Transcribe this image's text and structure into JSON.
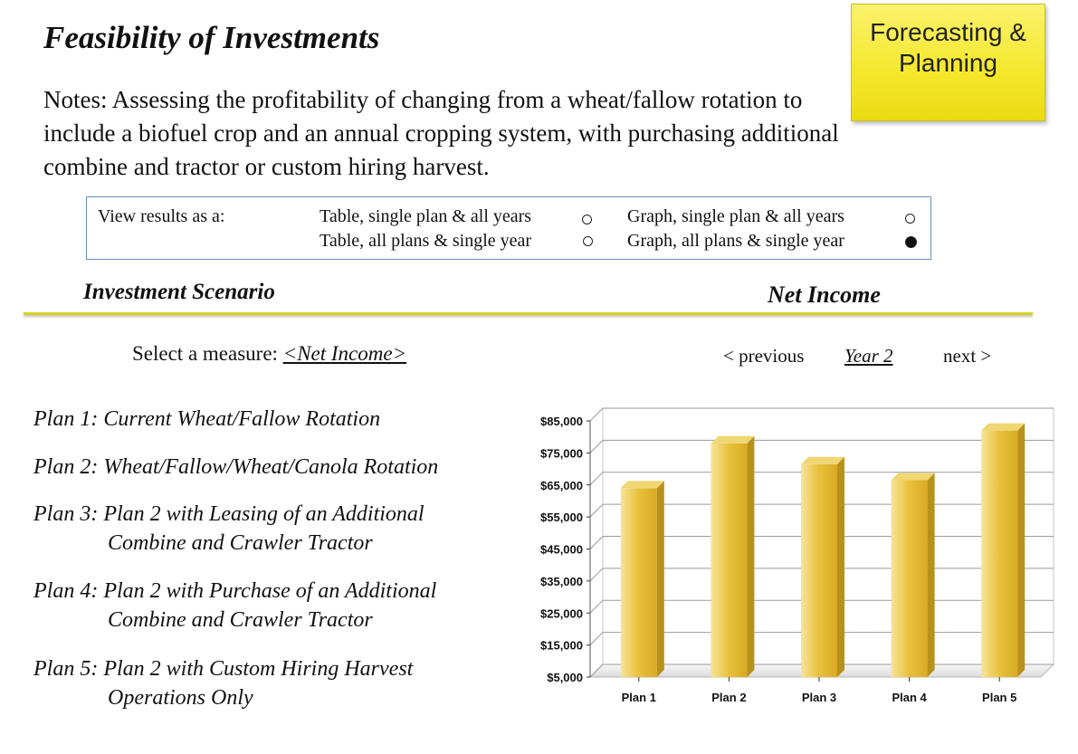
{
  "header": {
    "title": "Feasibility of Investments",
    "badge_line1": "Forecasting &",
    "badge_line2": "Planning"
  },
  "notes": "Notes: Assessing the profitability of changing from a wheat/fallow rotation to include a biofuel crop and an annual cropping system, with purchasing additional combine and tractor or custom hiring harvest.",
  "view_options": {
    "label": "View results as a:",
    "options": [
      {
        "label": "Table, single plan & all years",
        "selected": false
      },
      {
        "label": "Table, all plans & single year",
        "selected": false
      },
      {
        "label": "Graph, single plan & all years",
        "selected": false
      },
      {
        "label": "Graph, all plans & single year",
        "selected": true
      }
    ]
  },
  "sections": {
    "left_heading": "Investment Scenario",
    "right_heading": "Net Income"
  },
  "measure": {
    "prefix": "Select a measure: ",
    "value": "<Net Income>"
  },
  "year_nav": {
    "previous": "< previous",
    "year": "Year 2",
    "next": "next >"
  },
  "plans": [
    {
      "line1": "Plan 1: Current Wheat/Fallow Rotation",
      "line2": ""
    },
    {
      "line1": "Plan 2: Wheat/Fallow/Wheat/Canola Rotation",
      "line2": ""
    },
    {
      "line1": "Plan 3: Plan 2 with Leasing of an Additional",
      "line2": "Combine and Crawler Tractor"
    },
    {
      "line1": "Plan 4: Plan 2 with Purchase of an Additional",
      "line2": "Combine and Crawler Tractor"
    },
    {
      "line1": "Plan 5: Plan 2 with Custom Hiring Harvest",
      "line2": "Operations Only"
    }
  ],
  "colors": {
    "bar": "#e8c13a",
    "bar_side": "#b8901c",
    "bar_top": "#f0d774",
    "rule": "#d9d21e",
    "badge": "#f4e72a"
  },
  "chart_data": {
    "type": "bar",
    "title": "Net Income",
    "categories": [
      "Plan 1",
      "Plan 2",
      "Plan 3",
      "Plan 4",
      "Plan 5"
    ],
    "values": [
      64000,
      78000,
      71500,
      66500,
      82000
    ],
    "yticks": [
      "$5,000",
      "$15,000",
      "$25,000",
      "$35,000",
      "$45,000",
      "$55,000",
      "$65,000",
      "$75,000",
      "$85,000"
    ],
    "ylim": [
      5000,
      85000
    ],
    "grid": true,
    "xlabel": "",
    "ylabel": ""
  }
}
